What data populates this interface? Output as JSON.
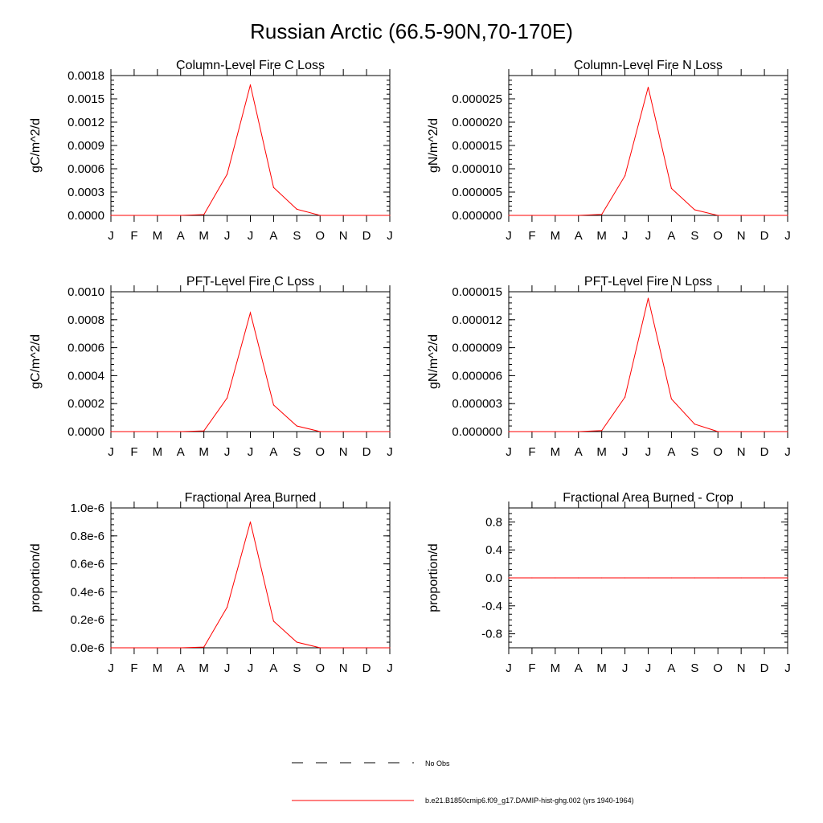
{
  "page": {
    "title": "Russian Arctic (66.5-90N,70-170E)"
  },
  "colors": {
    "series": "#ff0000",
    "axis": "#000000",
    "obs": "#000000"
  },
  "month_labels": [
    "J",
    "F",
    "M",
    "A",
    "M",
    "J",
    "J",
    "A",
    "S",
    "O",
    "N",
    "D",
    "J"
  ],
  "chart_data": [
    {
      "type": "line",
      "title": "Column-Level Fire C Loss",
      "ylabel": "gC/m^2/d",
      "ylim": [
        0,
        0.0018
      ],
      "yticks": [
        "0.0000",
        "0.0003",
        "0.0006",
        "0.0009",
        "0.0012",
        "0.0015",
        "0.0018"
      ],
      "x": [
        "J",
        "F",
        "M",
        "A",
        "M",
        "J",
        "J",
        "A",
        "S",
        "O",
        "N",
        "D",
        "J"
      ],
      "series": [
        {
          "values": [
            0,
            0,
            0,
            0,
            1e-05,
            0.00053,
            0.00168,
            0.00036,
            8e-05,
            0,
            0,
            0,
            0
          ]
        }
      ]
    },
    {
      "type": "line",
      "title": "Column-Level Fire N Loss",
      "ylabel": "gN/m^2/d",
      "ylim": [
        0,
        3e-05
      ],
      "yticks": [
        "0.000000",
        "0.000005",
        "0.000010",
        "0.000015",
        "0.000020",
        "0.000025"
      ],
      "x": [
        "J",
        "F",
        "M",
        "A",
        "M",
        "J",
        "J",
        "A",
        "S",
        "O",
        "N",
        "D",
        "J"
      ],
      "series": [
        {
          "values": [
            0,
            0,
            0,
            0,
            2e-07,
            8.5e-06,
            2.75e-05,
            5.8e-06,
            1.2e-06,
            0,
            0,
            0,
            0
          ]
        }
      ]
    },
    {
      "type": "line",
      "title": "PFT-Level Fire C Loss",
      "ylabel": "gC/m^2/d",
      "ylim": [
        0,
        0.001
      ],
      "yticks": [
        "0.0000",
        "0.0002",
        "0.0004",
        "0.0006",
        "0.0008",
        "0.0010"
      ],
      "x": [
        "J",
        "F",
        "M",
        "A",
        "M",
        "J",
        "J",
        "A",
        "S",
        "O",
        "N",
        "D",
        "J"
      ],
      "series": [
        {
          "values": [
            0,
            0,
            0,
            0,
            5e-06,
            0.00024,
            0.00085,
            0.00019,
            4e-05,
            0,
            0,
            0,
            0
          ]
        }
      ]
    },
    {
      "type": "line",
      "title": "PFT-Level Fire N Loss",
      "ylabel": "gN/m^2/d",
      "ylim": [
        0,
        1.5e-05
      ],
      "yticks": [
        "0.000000",
        "0.000003",
        "0.000006",
        "0.000009",
        "0.000012",
        "0.000015"
      ],
      "x": [
        "J",
        "F",
        "M",
        "A",
        "M",
        "J",
        "J",
        "A",
        "S",
        "O",
        "N",
        "D",
        "J"
      ],
      "series": [
        {
          "values": [
            0,
            0,
            0,
            0,
            1e-07,
            3.7e-06,
            1.43e-05,
            3.5e-06,
            8e-07,
            0,
            0,
            0,
            0
          ]
        }
      ]
    },
    {
      "type": "line",
      "title": "Fractional Area Burned",
      "ylabel": "proportion/d",
      "ylim": [
        0,
        1e-06
      ],
      "yticks": [
        "0.0e-6",
        "0.2e-6",
        "0.4e-6",
        "0.6e-6",
        "0.8e-6",
        "1.0e-6"
      ],
      "x": [
        "J",
        "F",
        "M",
        "A",
        "M",
        "J",
        "J",
        "A",
        "S",
        "O",
        "N",
        "D",
        "J"
      ],
      "series": [
        {
          "values": [
            0,
            0,
            0,
            0,
            5e-09,
            2.9e-07,
            9e-07,
            1.9e-07,
            4e-08,
            0,
            0,
            0,
            0
          ]
        }
      ]
    },
    {
      "type": "line",
      "title": "Fractional Area Burned - Crop",
      "ylabel": "proportion/d",
      "ylim": [
        -1,
        1
      ],
      "yticks": [
        "-0.8",
        "-0.4",
        "0.0",
        "0.4",
        "0.8"
      ],
      "x": [
        "J",
        "F",
        "M",
        "A",
        "M",
        "J",
        "J",
        "A",
        "S",
        "O",
        "N",
        "D",
        "J"
      ],
      "series": [
        {
          "values": [
            0,
            0,
            0,
            0,
            0,
            0,
            0,
            0,
            0,
            0,
            0,
            0,
            0
          ]
        }
      ]
    }
  ],
  "legend": [
    {
      "label": "No Obs",
      "style": "dashed"
    },
    {
      "label": "b.e21.B1850cmip6.f09_g17.DAMIP-hist-ghg.002 (yrs 1940-1964)",
      "style": "solid"
    }
  ]
}
